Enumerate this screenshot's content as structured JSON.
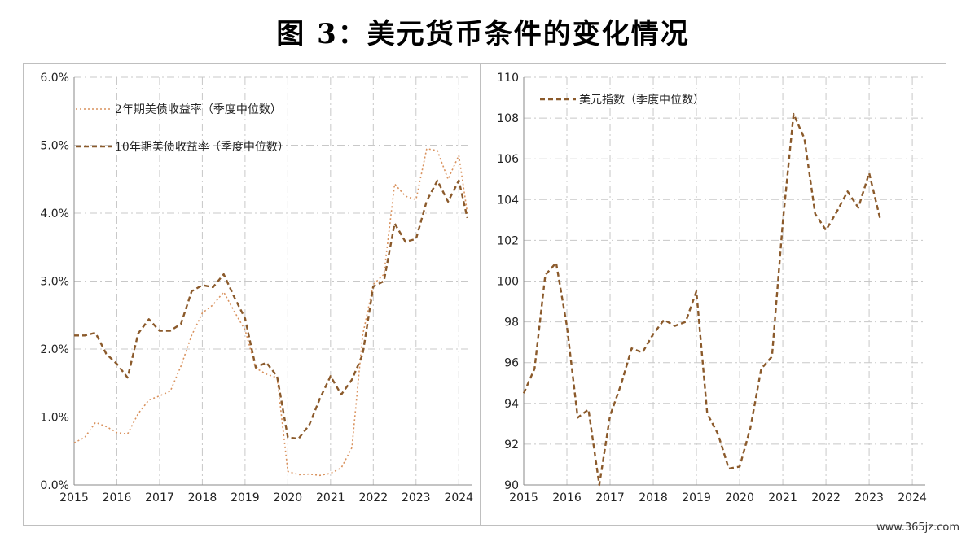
{
  "header": {
    "title": "图 3：美元货币条件的变化情况"
  },
  "watermark": "www.365jz.com",
  "chart_data": [
    {
      "type": "line",
      "title": "",
      "xlabel": "",
      "ylabel": "",
      "xlim": [
        2015,
        2024.3
      ],
      "ylim": [
        0,
        6
      ],
      "x_ticks": [
        "2015",
        "2016",
        "2017",
        "2018",
        "2019",
        "2020",
        "2021",
        "2022",
        "2023",
        "2024"
      ],
      "y_ticks": [
        "0.0%",
        "1.0%",
        "2.0%",
        "3.0%",
        "4.0%",
        "5.0%",
        "6.0%"
      ],
      "grid": true,
      "legend_position": "top-left",
      "series": [
        {
          "name": "2年期美债收益率（季度中位数）",
          "style": "dotted",
          "color": "#d9925e",
          "x": [
            2015.0,
            2015.25,
            2015.5,
            2015.75,
            2016.0,
            2016.25,
            2016.5,
            2016.75,
            2017.0,
            2017.25,
            2017.5,
            2017.75,
            2018.0,
            2018.25,
            2018.5,
            2018.75,
            2019.0,
            2019.25,
            2019.5,
            2019.75,
            2020.0,
            2020.25,
            2020.5,
            2020.75,
            2021.0,
            2021.25,
            2021.5,
            2021.75,
            2022.0,
            2022.25,
            2022.5,
            2022.75,
            2023.0,
            2023.25,
            2023.5,
            2023.75,
            2024.0,
            2024.2
          ],
          "values": [
            0.62,
            0.7,
            0.92,
            0.86,
            0.77,
            0.75,
            1.05,
            1.25,
            1.31,
            1.38,
            1.75,
            2.2,
            2.53,
            2.65,
            2.84,
            2.55,
            2.28,
            1.72,
            1.63,
            1.58,
            0.2,
            0.15,
            0.16,
            0.14,
            0.17,
            0.25,
            0.55,
            2.2,
            2.95,
            3.1,
            4.43,
            4.25,
            4.2,
            4.95,
            4.92,
            4.5,
            4.85,
            4.0
          ]
        },
        {
          "name": "10年期美债收益率（季度中位数）",
          "style": "dashed",
          "color": "#8b5a2b",
          "x": [
            2015.0,
            2015.25,
            2015.5,
            2015.75,
            2016.0,
            2016.25,
            2016.5,
            2016.75,
            2017.0,
            2017.25,
            2017.5,
            2017.75,
            2018.0,
            2018.25,
            2018.5,
            2018.75,
            2019.0,
            2019.25,
            2019.5,
            2019.75,
            2020.0,
            2020.25,
            2020.5,
            2020.75,
            2021.0,
            2021.25,
            2021.5,
            2021.75,
            2022.0,
            2022.25,
            2022.5,
            2022.75,
            2023.0,
            2023.25,
            2023.5,
            2023.75,
            2024.0,
            2024.2
          ],
          "values": [
            2.2,
            2.2,
            2.24,
            1.93,
            1.78,
            1.58,
            2.23,
            2.44,
            2.27,
            2.27,
            2.37,
            2.85,
            2.94,
            2.91,
            3.1,
            2.76,
            2.45,
            1.73,
            1.8,
            1.6,
            0.7,
            0.68,
            0.88,
            1.27,
            1.6,
            1.33,
            1.55,
            1.92,
            2.92,
            3.0,
            3.85,
            3.58,
            3.62,
            4.18,
            4.48,
            4.17,
            4.48,
            3.93
          ]
        }
      ]
    },
    {
      "type": "line",
      "title": "",
      "xlabel": "",
      "ylabel": "",
      "xlim": [
        2015,
        2024.3
      ],
      "ylim": [
        90,
        110
      ],
      "x_ticks": [
        "2015",
        "2016",
        "2017",
        "2018",
        "2019",
        "2020",
        "2021",
        "2022",
        "2023",
        "2024"
      ],
      "y_ticks": [
        "90",
        "92",
        "94",
        "96",
        "98",
        "100",
        "102",
        "104",
        "106",
        "108",
        "110"
      ],
      "grid": true,
      "legend_position": "top-left",
      "series": [
        {
          "name": "美元指数（季度中位数）",
          "style": "dashed",
          "color": "#8b5a2b",
          "x": [
            2015.0,
            2015.25,
            2015.5,
            2015.75,
            2016.0,
            2016.25,
            2016.5,
            2016.75,
            2017.0,
            2017.25,
            2017.5,
            2017.75,
            2018.0,
            2018.25,
            2018.5,
            2018.75,
            2019.0,
            2019.25,
            2019.5,
            2019.75,
            2020.0,
            2020.25,
            2020.5,
            2020.75,
            2021.0,
            2021.25,
            2021.5,
            2021.75,
            2022.0,
            2022.25,
            2022.5,
            2022.75,
            2023.0,
            2023.25
          ],
          "values": [
            94.5,
            95.7,
            100.3,
            100.9,
            97.8,
            93.3,
            93.7,
            90.0,
            93.4,
            94.9,
            96.7,
            96.5,
            97.4,
            98.1,
            97.8,
            98.0,
            99.5,
            93.5,
            92.5,
            90.8,
            90.9,
            92.8,
            95.7,
            96.3,
            102.9,
            108.2,
            107.0,
            103.3,
            102.5,
            103.4,
            104.4,
            103.6,
            105.3,
            103.1
          ]
        }
      ]
    }
  ]
}
